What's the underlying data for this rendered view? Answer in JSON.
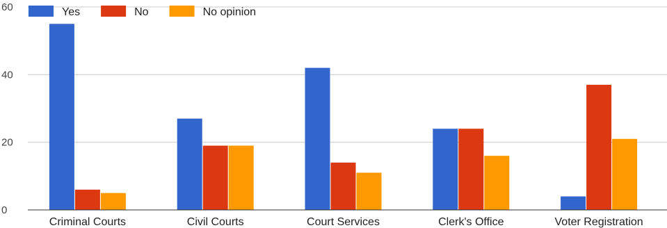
{
  "chart_data": {
    "type": "bar",
    "title": "",
    "xlabel": "",
    "ylabel": "",
    "categories": [
      "Criminal Courts",
      "Civil Courts",
      "Court Services",
      "Clerk's Office",
      "Voter Registration"
    ],
    "series": [
      {
        "name": "Yes",
        "color": "#3366cc",
        "values": [
          55,
          27,
          42,
          24,
          4
        ]
      },
      {
        "name": "No",
        "color": "#dc3912",
        "values": [
          6,
          19,
          14,
          24,
          37
        ]
      },
      {
        "name": "No opinion",
        "color": "#ff9900",
        "values": [
          5,
          19,
          11,
          16,
          21
        ]
      }
    ],
    "ylim": [
      0,
      60
    ],
    "yticks": [
      0,
      20,
      40,
      60
    ],
    "yticks_labels": [
      "0",
      "20",
      "40",
      "60"
    ],
    "grid": true,
    "legend_position": "top-left"
  }
}
